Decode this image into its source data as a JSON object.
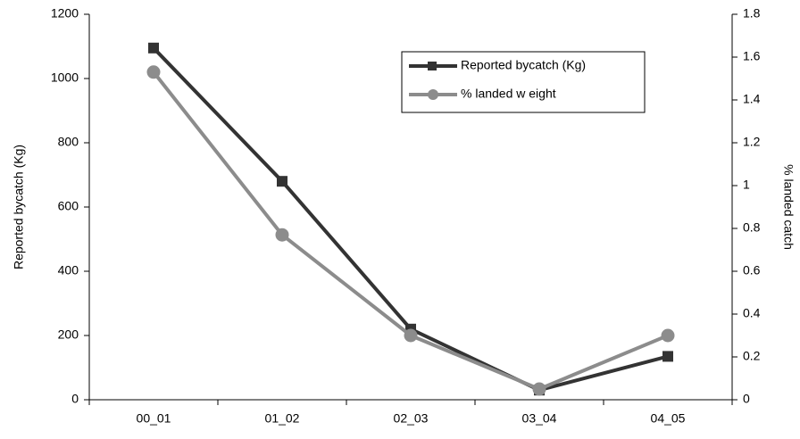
{
  "chart_data": {
    "type": "line",
    "categories": [
      "00_01",
      "01_02",
      "02_03",
      "03_04",
      "04_05"
    ],
    "series": [
      {
        "name": "Reported bycatch (Kg)",
        "color": "#333333",
        "marker": "square",
        "values": [
          1095,
          680,
          220,
          30,
          135
        ]
      },
      {
        "name": "% landed w eight",
        "color": "#8c8c8c",
        "marker": "circle",
        "axis": "y2",
        "values": [
          1.53,
          0.77,
          0.3,
          0.05,
          0.3
        ]
      }
    ],
    "ylabel": "Reported bycatch (Kg)",
    "y2label": "% landed catch",
    "ylim": [
      0,
      1200
    ],
    "yticks": [
      0,
      200,
      400,
      600,
      800,
      1000,
      1200
    ],
    "y2lim": [
      0,
      1.8
    ],
    "y2ticks": [
      0,
      0.2,
      0.4,
      0.6,
      0.8,
      1,
      1.2,
      1.4,
      1.6,
      1.8
    ],
    "legend": "upper right"
  }
}
